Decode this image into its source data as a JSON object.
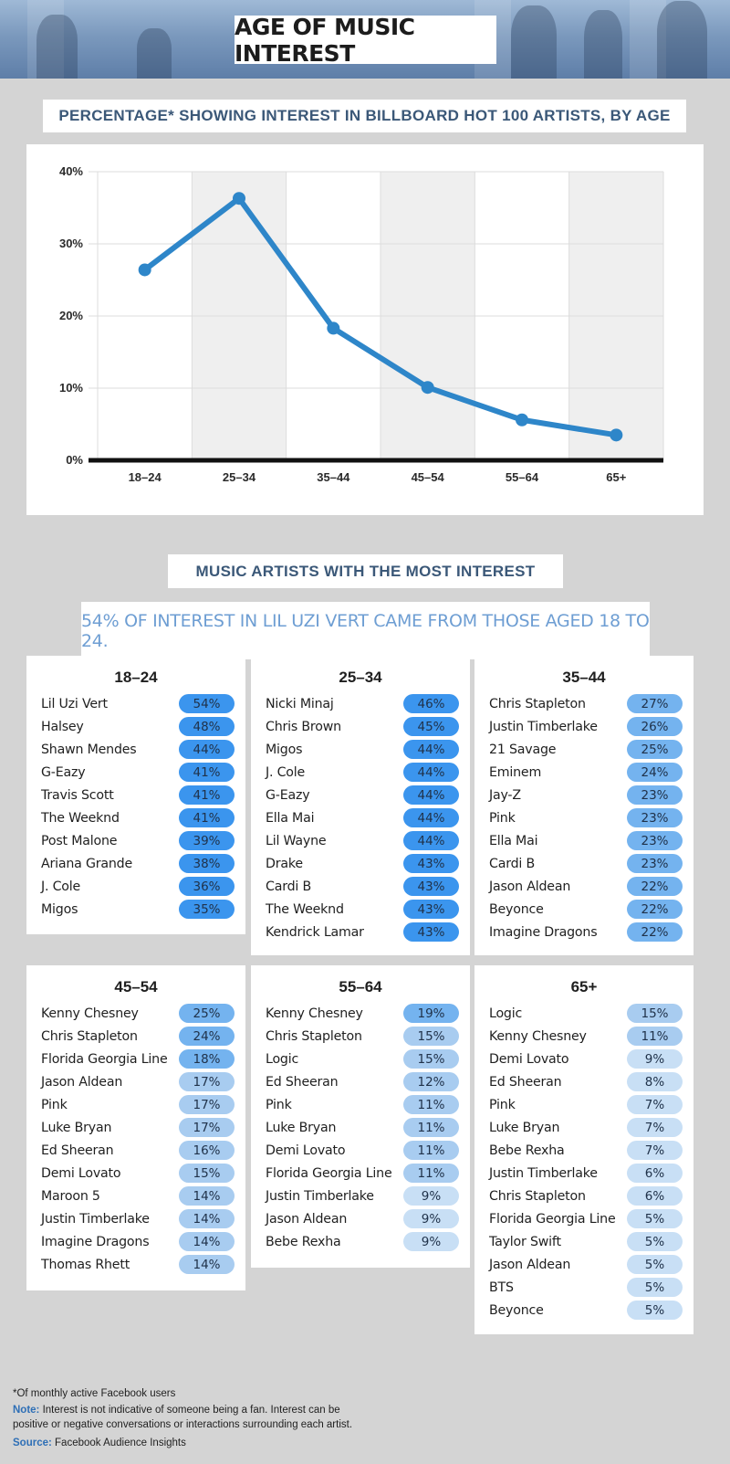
{
  "title": "AGE OF MUSIC INTEREST",
  "chart_heading": "PERCENTAGE* SHOWING INTEREST IN BILLBOARD HOT 100 ARTISTS, BY AGE",
  "chart_data": {
    "type": "line",
    "title": "PERCENTAGE* SHOWING INTEREST IN BILLBOARD HOT 100 ARTISTS, BY AGE",
    "categories": [
      "18–24",
      "25–34",
      "35–44",
      "45–54",
      "55–64",
      "65+"
    ],
    "values": [
      26.4,
      36.3,
      18.3,
      10.1,
      5.6,
      3.5
    ],
    "y_ticks": [
      "0%",
      "10%",
      "20%",
      "30%",
      "40%"
    ],
    "ylim": [
      0,
      40
    ],
    "xlabel": "",
    "ylabel": "",
    "grid": true,
    "line_color": "#2e86c9",
    "alt_band_color": "#efefef",
    "axis_color": "#111111"
  },
  "section_heading": "MUSIC ARTISTS WITH THE MOST INTEREST",
  "callout": "54% OF INTEREST IN LIL UZI VERT CAME FROM THOSE AGED 18 TO 24.",
  "pill_colors": {
    "high": "#3b95ee",
    "mid": "#74b3ef",
    "low": "#a8ccf0",
    "vlow": "#c8dff5"
  },
  "groups": [
    {
      "age": "18–24",
      "artists": [
        [
          "Lil Uzi Vert",
          "54%"
        ],
        [
          "Halsey",
          "48%"
        ],
        [
          "Shawn Mendes",
          "44%"
        ],
        [
          "G-Eazy",
          "41%"
        ],
        [
          "Travis Scott",
          "41%"
        ],
        [
          "The Weeknd",
          "41%"
        ],
        [
          "Post Malone",
          "39%"
        ],
        [
          "Ariana Grande",
          "38%"
        ],
        [
          "J. Cole",
          "36%"
        ],
        [
          "Migos",
          "35%"
        ]
      ]
    },
    {
      "age": "25–34",
      "artists": [
        [
          "Nicki Minaj",
          "46%"
        ],
        [
          "Chris Brown",
          "45%"
        ],
        [
          "Migos",
          "44%"
        ],
        [
          "J. Cole",
          "44%"
        ],
        [
          "G-Eazy",
          "44%"
        ],
        [
          "Ella Mai",
          "44%"
        ],
        [
          "Lil Wayne",
          "44%"
        ],
        [
          "Drake",
          "43%"
        ],
        [
          "Cardi B",
          "43%"
        ],
        [
          "The Weeknd",
          "43%"
        ],
        [
          "Kendrick Lamar",
          "43%"
        ]
      ]
    },
    {
      "age": "35–44",
      "artists": [
        [
          "Chris Stapleton",
          "27%"
        ],
        [
          "Justin Timberlake",
          "26%"
        ],
        [
          "21 Savage",
          "25%"
        ],
        [
          "Eminem",
          "24%"
        ],
        [
          "Jay-Z",
          "23%"
        ],
        [
          "Pink",
          "23%"
        ],
        [
          "Ella Mai",
          "23%"
        ],
        [
          "Cardi B",
          "23%"
        ],
        [
          "Jason Aldean",
          "22%"
        ],
        [
          "Beyonce",
          "22%"
        ],
        [
          "Imagine Dragons",
          "22%"
        ]
      ]
    },
    {
      "age": "45–54",
      "artists": [
        [
          "Kenny Chesney",
          "25%"
        ],
        [
          "Chris Stapleton",
          "24%"
        ],
        [
          "Florida Georgia Line",
          "18%"
        ],
        [
          "Jason Aldean",
          "17%"
        ],
        [
          "Pink",
          "17%"
        ],
        [
          "Luke Bryan",
          "17%"
        ],
        [
          "Ed Sheeran",
          "16%"
        ],
        [
          "Demi Lovato",
          "15%"
        ],
        [
          "Maroon 5",
          "14%"
        ],
        [
          "Justin Timberlake",
          "14%"
        ],
        [
          "Imagine Dragons",
          "14%"
        ],
        [
          "Thomas Rhett",
          "14%"
        ]
      ]
    },
    {
      "age": "55–64",
      "artists": [
        [
          "Kenny Chesney",
          "19%"
        ],
        [
          "Chris Stapleton",
          "15%"
        ],
        [
          "Logic",
          "15%"
        ],
        [
          "Ed Sheeran",
          "12%"
        ],
        [
          "Pink",
          "11%"
        ],
        [
          "Luke Bryan",
          "11%"
        ],
        [
          "Demi Lovato",
          "11%"
        ],
        [
          "Florida Georgia Line",
          "11%"
        ],
        [
          "Justin Timberlake",
          "9%"
        ],
        [
          "Jason Aldean",
          "9%"
        ],
        [
          "Bebe Rexha",
          "9%"
        ]
      ]
    },
    {
      "age": "65+",
      "artists": [
        [
          "Logic",
          "15%"
        ],
        [
          "Kenny Chesney",
          "11%"
        ],
        [
          "Demi Lovato",
          "9%"
        ],
        [
          "Ed Sheeran",
          "8%"
        ],
        [
          "Pink",
          "7%"
        ],
        [
          "Luke Bryan",
          "7%"
        ],
        [
          "Bebe Rexha",
          "7%"
        ],
        [
          "Justin Timberlake",
          "6%"
        ],
        [
          "Chris Stapleton",
          "6%"
        ],
        [
          "Florida Georgia Line",
          "5%"
        ],
        [
          "Taylor Swift",
          "5%"
        ],
        [
          "Jason Aldean",
          "5%"
        ],
        [
          "BTS",
          "5%"
        ],
        [
          "Beyonce",
          "5%"
        ]
      ]
    }
  ],
  "footnote": "*Of monthly active Facebook users",
  "note_label": "Note:",
  "note_text": " Interest is not indicative of someone being a fan. Interest can be",
  "note_text2": "positive or negative conversations or interactions surrounding each artist.",
  "source_label": "Source:",
  "source_text": " Facebook Audience Insights"
}
